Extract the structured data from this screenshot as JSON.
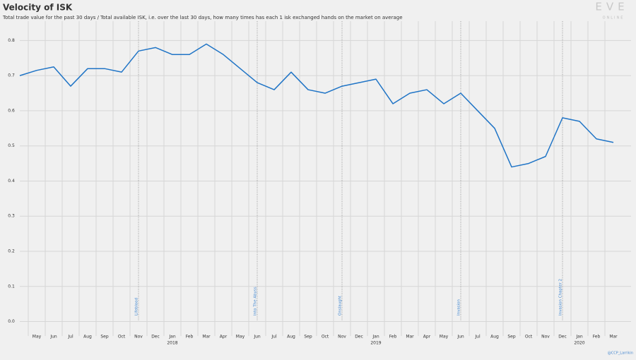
{
  "chart_data": {
    "type": "line",
    "title": "Velocity of ISK",
    "subtitle": "Total trade value for the past 30 days / Total available ISK, i.e. over the last 30 days, how many times has each 1 isk exchanged hands on the market on average",
    "logo": "EVE",
    "logo_sub": "ONLINE",
    "credit": "@CCP_Larrikin",
    "x": [
      "2017-04",
      "2017-05",
      "2017-06",
      "2017-07",
      "2017-08",
      "2017-09",
      "2017-10",
      "2017-11",
      "2017-12",
      "2018-01",
      "2018-02",
      "2018-03",
      "2018-04",
      "2018-05",
      "2018-06",
      "2018-07",
      "2018-08",
      "2018-09",
      "2018-10",
      "2018-11",
      "2018-12",
      "2019-01",
      "2019-02",
      "2019-03",
      "2019-04",
      "2019-05",
      "2019-06",
      "2019-07",
      "2019-08",
      "2019-09",
      "2019-10",
      "2019-11",
      "2019-12",
      "2020-01",
      "2020-02",
      "2020-03"
    ],
    "series": [
      {
        "name": "Velocity of ISK",
        "color": "#1f74c6",
        "values": [
          0.7,
          0.715,
          0.725,
          0.67,
          0.72,
          0.72,
          0.71,
          0.77,
          0.78,
          0.76,
          0.76,
          0.79,
          0.76,
          0.72,
          0.68,
          0.66,
          0.71,
          0.66,
          0.65,
          0.67,
          0.68,
          0.69,
          0.62,
          0.65,
          0.66,
          0.62,
          0.65,
          0.6,
          0.55,
          0.44,
          0.45,
          0.47,
          0.58,
          0.57,
          0.52,
          0.51
        ]
      }
    ],
    "xlim": [
      "2017-04",
      "2020-03"
    ],
    "xticks": [
      {
        "value": "2017-05",
        "label": "May"
      },
      {
        "value": "2017-06",
        "label": "Jun"
      },
      {
        "value": "2017-07",
        "label": "Jul"
      },
      {
        "value": "2017-08",
        "label": "Aug"
      },
      {
        "value": "2017-09",
        "label": "Sep"
      },
      {
        "value": "2017-10",
        "label": "Oct"
      },
      {
        "value": "2017-11",
        "label": "Nov"
      },
      {
        "value": "2017-12",
        "label": "Dec"
      },
      {
        "value": "2018-01",
        "label": "Jan"
      },
      {
        "value": "2018-02",
        "label": "Feb"
      },
      {
        "value": "2018-03",
        "label": "Mar"
      },
      {
        "value": "2018-04",
        "label": "Apr"
      },
      {
        "value": "2018-05",
        "label": "May"
      },
      {
        "value": "2018-06",
        "label": "Jun"
      },
      {
        "value": "2018-07",
        "label": "Jul"
      },
      {
        "value": "2018-08",
        "label": "Aug"
      },
      {
        "value": "2018-09",
        "label": "Sep"
      },
      {
        "value": "2018-10",
        "label": "Oct"
      },
      {
        "value": "2018-11",
        "label": "Nov"
      },
      {
        "value": "2018-12",
        "label": "Dec"
      },
      {
        "value": "2019-01",
        "label": "Jan"
      },
      {
        "value": "2019-02",
        "label": "Feb"
      },
      {
        "value": "2019-03",
        "label": "Mar"
      },
      {
        "value": "2019-04",
        "label": "Apr"
      },
      {
        "value": "2019-05",
        "label": "May"
      },
      {
        "value": "2019-06",
        "label": "Jun"
      },
      {
        "value": "2019-07",
        "label": "Jul"
      },
      {
        "value": "2019-08",
        "label": "Aug"
      },
      {
        "value": "2019-09",
        "label": "Sep"
      },
      {
        "value": "2019-10",
        "label": "Oct"
      },
      {
        "value": "2019-11",
        "label": "Nov"
      },
      {
        "value": "2019-12",
        "label": "Dec"
      },
      {
        "value": "2020-01",
        "label": "Jan"
      },
      {
        "value": "2020-02",
        "label": "Feb"
      },
      {
        "value": "2020-03",
        "label": "Mar"
      }
    ],
    "xtick_years": [
      {
        "value": "2018-01",
        "label": "2018"
      },
      {
        "value": "2019-01",
        "label": "2019"
      },
      {
        "value": "2020-01",
        "label": "2020"
      }
    ],
    "ylim": [
      -0.025,
      0.855
    ],
    "yticks": [
      {
        "value": 0,
        "label": "0.0"
      },
      0.1,
      0.2,
      0.3,
      0.4,
      0.5,
      0.6,
      0.7,
      0.8
    ],
    "grid": true,
    "events": [
      {
        "x": "2017-11",
        "label": "Lifeblood"
      },
      {
        "x": "2018-06",
        "label": "Into The Abyss"
      },
      {
        "x": "2018-11",
        "label": "Onslaught"
      },
      {
        "x": "2019-06",
        "label": "Invasion"
      },
      {
        "x": "2019-12",
        "label": "Invasion Chapter 2"
      }
    ]
  }
}
